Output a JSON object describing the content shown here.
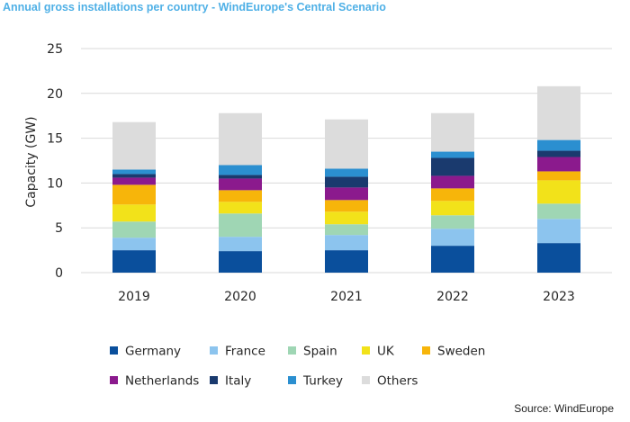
{
  "chart_data": {
    "type": "bar",
    "stacked": true,
    "title": "Annual gross installations per country - WindEurope's Central Scenario",
    "ylabel": "Capacity (GW)",
    "ylim": [
      0,
      25
    ],
    "yticks": [
      "0",
      "5",
      "10",
      "15",
      "20",
      "25"
    ],
    "grid": true,
    "legend_position": "bottom",
    "categories": [
      "2019",
      "2020",
      "2021",
      "2022",
      "2023"
    ],
    "series": [
      {
        "name": "Germany",
        "color": "#0a4f9c",
        "values": [
          2.5,
          2.4,
          2.5,
          3.0,
          3.3
        ]
      },
      {
        "name": "France",
        "color": "#8cc4ee",
        "values": [
          1.4,
          1.6,
          1.7,
          1.9,
          2.7
        ]
      },
      {
        "name": "Spain",
        "color": "#9fd6b4",
        "values": [
          1.8,
          2.6,
          1.2,
          1.5,
          1.7
        ]
      },
      {
        "name": "UK",
        "color": "#f2e21a",
        "values": [
          1.9,
          1.3,
          1.4,
          1.6,
          2.6
        ]
      },
      {
        "name": "Sweden",
        "color": "#f7b50a",
        "values": [
          2.2,
          1.3,
          1.3,
          1.4,
          1.0
        ]
      },
      {
        "name": "Netherlands",
        "color": "#8b1a8d",
        "values": [
          0.8,
          1.3,
          1.4,
          1.4,
          1.6
        ]
      },
      {
        "name": "Italy",
        "color": "#1a3a6e",
        "values": [
          0.4,
          0.4,
          1.2,
          2.0,
          0.7
        ]
      },
      {
        "name": "Turkey",
        "color": "#2b8fd0",
        "values": [
          0.5,
          1.1,
          0.9,
          0.7,
          1.2
        ]
      },
      {
        "name": "Others",
        "color": "#dcdcdc",
        "values": [
          5.3,
          5.8,
          5.5,
          4.3,
          6.0
        ]
      }
    ]
  },
  "source_note": "Source: WindEurope"
}
